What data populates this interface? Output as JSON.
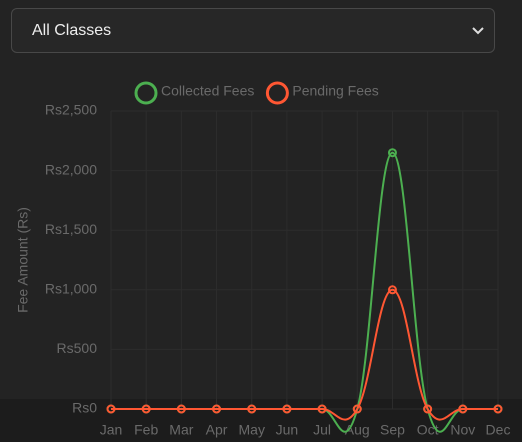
{
  "filter": {
    "selected": "All Classes"
  },
  "chart_data": {
    "type": "line",
    "y_label": "Fee Amount (Rs)",
    "categories": [
      "Jan",
      "Feb",
      "Mar",
      "Apr",
      "May",
      "Jun",
      "Jul",
      "Aug",
      "Sep",
      "Oct",
      "Nov",
      "Dec"
    ],
    "series": [
      {
        "name": "Collected Fees",
        "color": "#4caf50",
        "values": [
          0,
          0,
          0,
          0,
          0,
          0,
          0,
          0,
          2150,
          0,
          0,
          0
        ]
      },
      {
        "name": "Pending Fees",
        "color": "#ff5733",
        "values": [
          0,
          0,
          0,
          0,
          0,
          0,
          0,
          0,
          1000,
          0,
          0,
          0
        ]
      }
    ],
    "ylim": [
      0,
      2500
    ],
    "yticks": [
      {
        "value": 0,
        "label": "Rs0"
      },
      {
        "value": 500,
        "label": "Rs500"
      },
      {
        "value": 1000,
        "label": "Rs1,000"
      },
      {
        "value": 1500,
        "label": "Rs1,500"
      },
      {
        "value": 2000,
        "label": "Rs2,000"
      },
      {
        "value": 2500,
        "label": "Rs2,500"
      }
    ],
    "grid": true,
    "legend": "top"
  }
}
